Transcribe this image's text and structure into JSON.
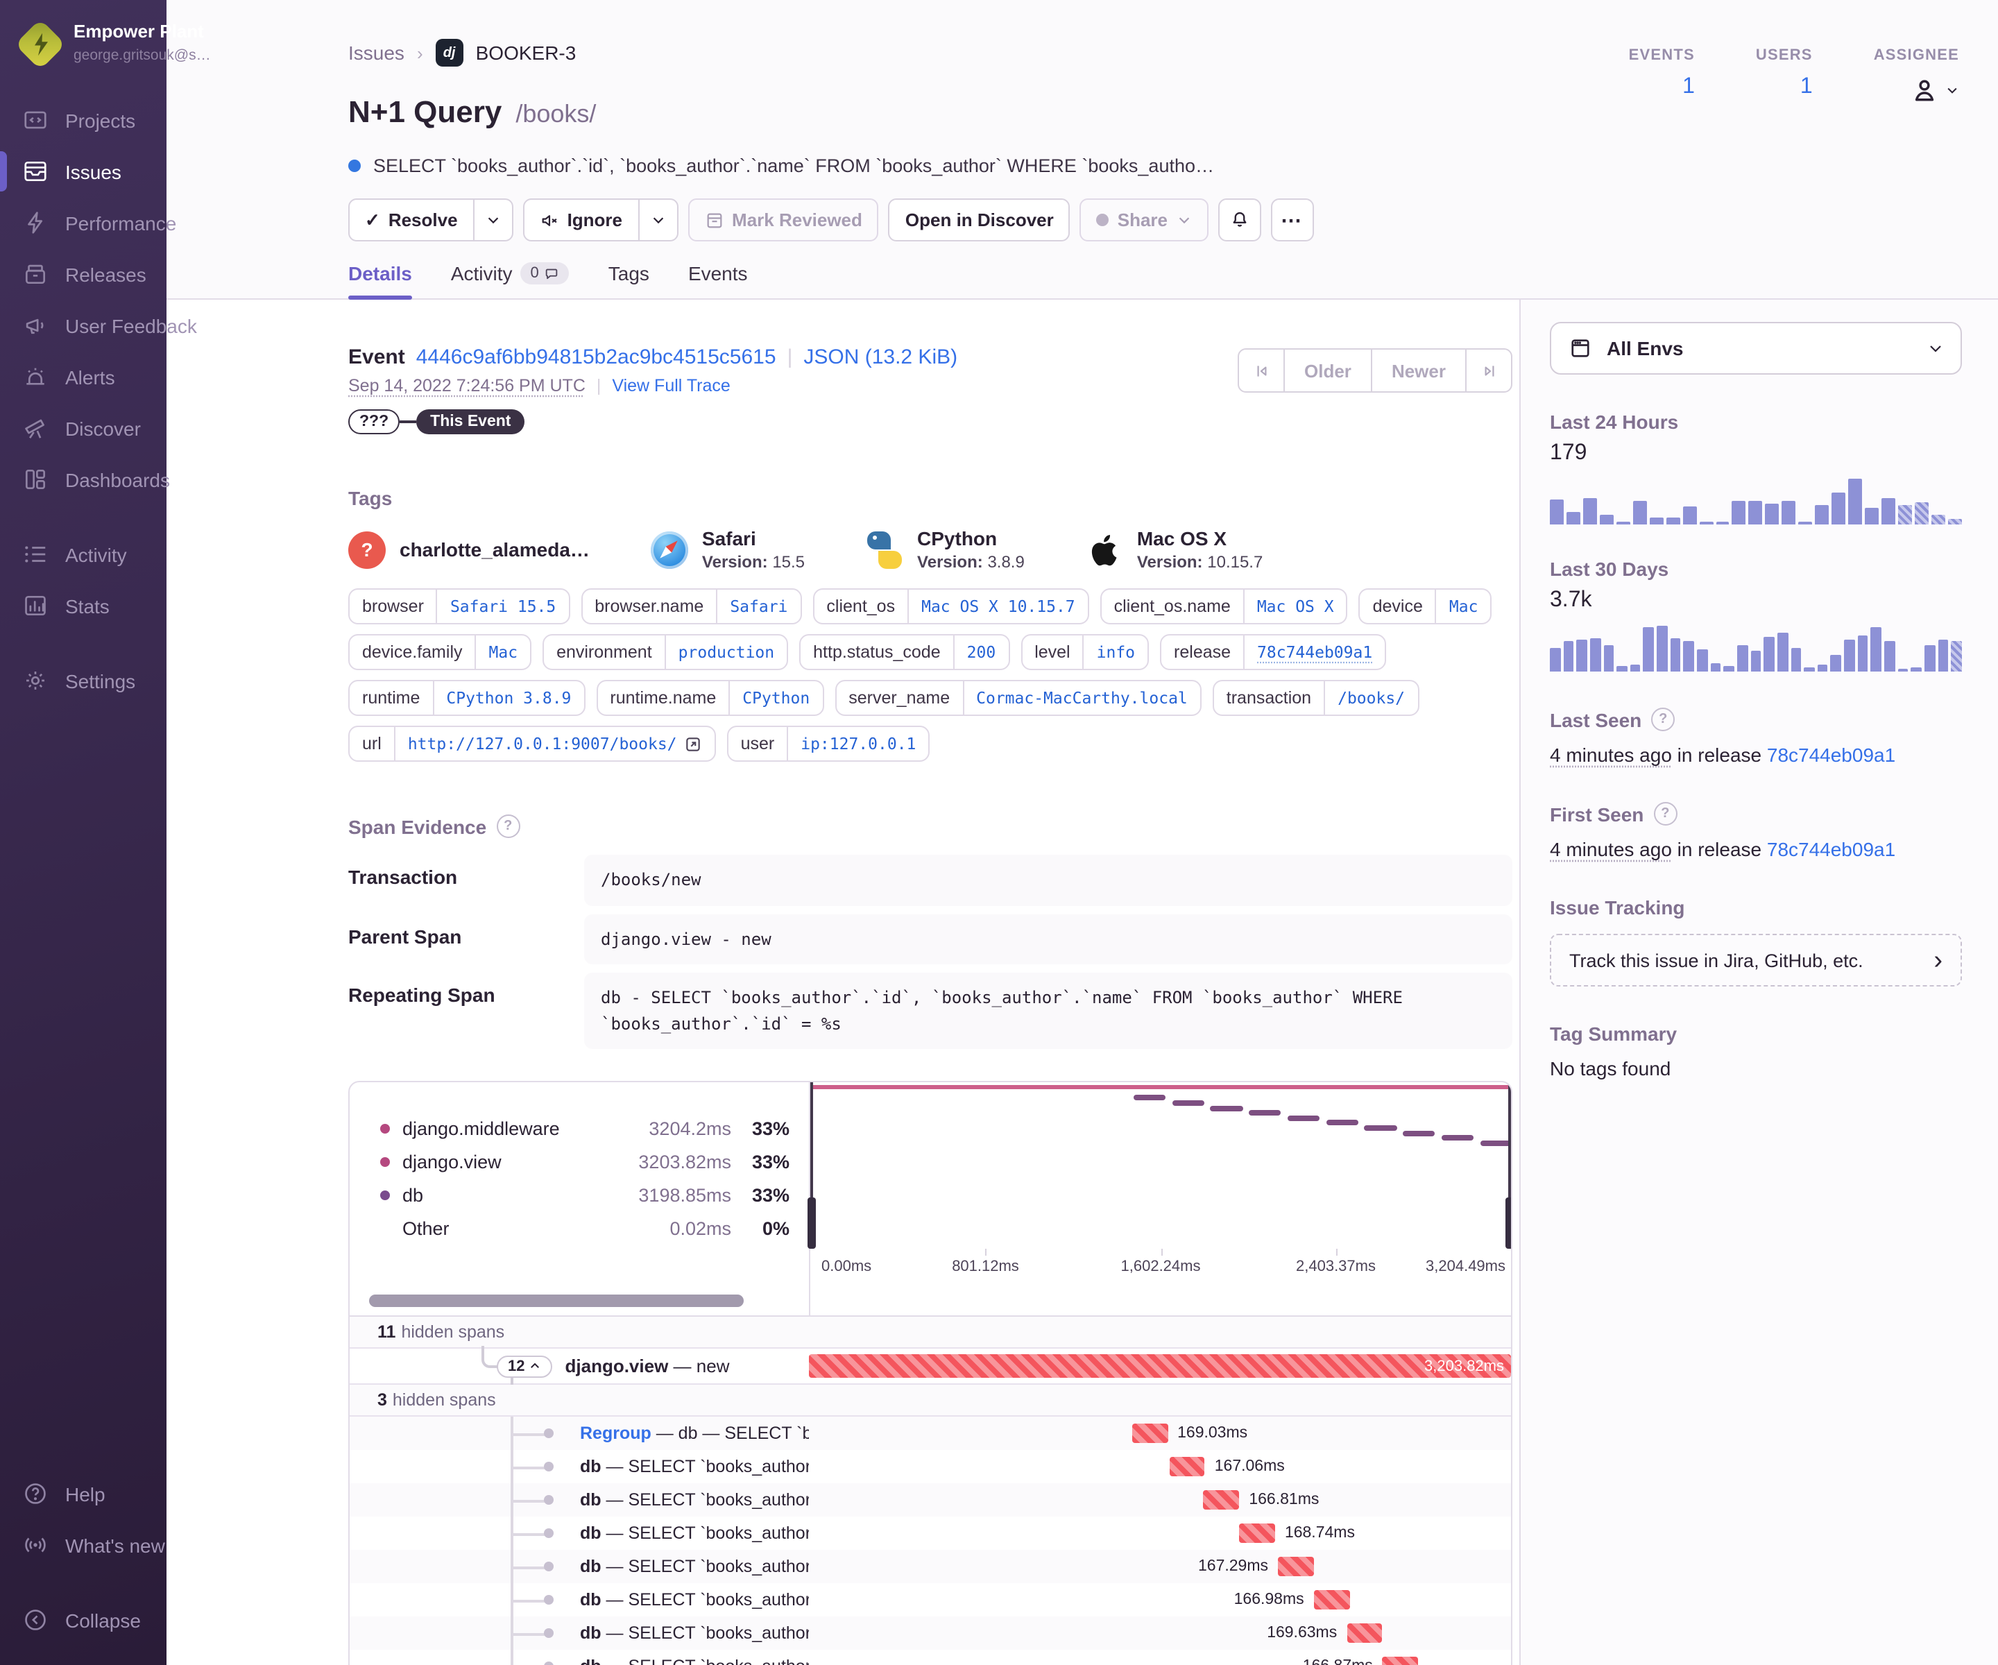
{
  "org": {
    "name": "Empower Plant",
    "email": "george.gritsouk@s…"
  },
  "sidebar": {
    "items": [
      {
        "id": "projects",
        "label": "Projects"
      },
      {
        "id": "issues",
        "label": "Issues",
        "active": true
      },
      {
        "id": "performance",
        "label": "Performance"
      },
      {
        "id": "releases",
        "label": "Releases"
      },
      {
        "id": "user-feedback",
        "label": "User Feedback"
      },
      {
        "id": "alerts",
        "label": "Alerts"
      },
      {
        "id": "discover",
        "label": "Discover"
      },
      {
        "id": "dashboards",
        "label": "Dashboards",
        "gap_after": true
      },
      {
        "id": "activity",
        "label": "Activity"
      },
      {
        "id": "stats",
        "label": "Stats",
        "gap_after": true
      },
      {
        "id": "settings",
        "label": "Settings"
      }
    ],
    "footer": [
      {
        "id": "help",
        "label": "Help"
      },
      {
        "id": "whats-new",
        "label": "What's new",
        "gap_after": true
      },
      {
        "id": "collapse",
        "label": "Collapse"
      }
    ]
  },
  "breadcrumb": {
    "root": "Issues",
    "project_icon": "dj",
    "project": "BOOKER-3"
  },
  "header": {
    "title": "N+1 Query",
    "transaction": "/books/",
    "culprit": "SELECT `books_author`.`id`, `books_author`.`name` FROM `books_author` WHERE `books_autho…",
    "stats": {
      "events_label": "EVENTS",
      "events_value": "1",
      "users_label": "USERS",
      "users_value": "1",
      "assignee_label": "ASSIGNEE"
    },
    "actions": {
      "resolve": "Resolve",
      "ignore": "Ignore",
      "mark_reviewed": "Mark Reviewed",
      "open_in_discover": "Open in Discover",
      "share": "Share"
    },
    "tabs": [
      {
        "label": "Details",
        "active": true
      },
      {
        "label": "Activity",
        "badge": "0"
      },
      {
        "label": "Tags"
      },
      {
        "label": "Events"
      }
    ]
  },
  "event": {
    "label": "Event",
    "id": "4446c9af6bb94815b2ac9bc4515c5615",
    "json_link": "JSON (13.2 KiB)",
    "date": "Sep 14, 2022 7:24:56 PM UTC",
    "view_full_trace": "View Full Trace",
    "unknown_pill": "???",
    "this_event_pill": "This Event",
    "pagination": {
      "older": "Older",
      "newer": "Newer"
    }
  },
  "tags": {
    "heading": "Tags",
    "avatars": [
      {
        "name": "charlotte_alameda…",
        "icon": "question"
      },
      {
        "name": "Safari",
        "version_label": "Version:",
        "version": "15.5",
        "icon": "safari"
      },
      {
        "name": "CPython",
        "version_label": "Version:",
        "version": "3.8.9",
        "icon": "python"
      },
      {
        "name": "Mac OS X",
        "version_label": "Version:",
        "version": "10.15.7",
        "icon": "apple"
      }
    ],
    "pills": [
      {
        "key": "browser",
        "value": "Safari 15.5"
      },
      {
        "key": "browser.name",
        "value": "Safari"
      },
      {
        "key": "client_os",
        "value": "Mac OS X 10.15.7"
      },
      {
        "key": "client_os.name",
        "value": "Mac OS X"
      },
      {
        "key": "device",
        "value": "Mac"
      },
      {
        "key": "device.family",
        "value": "Mac"
      },
      {
        "key": "environment",
        "value": "production"
      },
      {
        "key": "http.status_code",
        "value": "200"
      },
      {
        "key": "level",
        "value": "info"
      },
      {
        "key": "release",
        "value": "78c744eb09a1",
        "underline": true
      },
      {
        "key": "runtime",
        "value": "CPython 3.8.9"
      },
      {
        "key": "runtime.name",
        "value": "CPython"
      },
      {
        "key": "server_name",
        "value": "Cormac-MacCarthy.local"
      },
      {
        "key": "transaction",
        "value": "/books/"
      },
      {
        "key": "url",
        "value": "http://127.0.0.1:9007/books/",
        "external": true
      },
      {
        "key": "user",
        "value": "ip:127.0.0.1"
      }
    ]
  },
  "span_evidence": {
    "heading": "Span Evidence",
    "rows": [
      {
        "label": "Transaction",
        "value": "/books/new"
      },
      {
        "label": "Parent Span",
        "value": "django.view - new"
      },
      {
        "label": "Repeating Span",
        "value": "db - SELECT `books_author`.`id`, `books_author`.`name` FROM `books_author` WHERE `books_author`.`id` = %s"
      }
    ]
  },
  "waterfall": {
    "hidden_before": {
      "count": "11",
      "label": "hidden spans"
    },
    "group_row": {
      "badge": "12",
      "op": "django.view",
      "sep": " — ",
      "desc": "new",
      "duration": "3,203.82ms"
    },
    "hidden_inside": {
      "count": "3",
      "label": "hidden spans"
    }
  },
  "aside": {
    "env_select": "All Envs",
    "last_seen": {
      "heading": "Last Seen",
      "ago": "4 minutes ago",
      "mid": " in release ",
      "release": "78c744eb09a1"
    },
    "first_seen": {
      "heading": "First Seen",
      "ago": "4 minutes ago",
      "mid": " in release ",
      "release": "78c744eb09a1"
    },
    "issue_tracking": {
      "heading": "Issue Tracking",
      "button": "Track this issue in Jira, GitHub, etc."
    },
    "tag_summary": {
      "heading": "Tag Summary",
      "empty": "No tags found"
    }
  },
  "chart_data": [
    {
      "name": "span-operations-breakdown",
      "type": "table",
      "legend": [
        {
          "label": "django.middleware",
          "time": "3204.2ms",
          "pct": "33%",
          "color": "#b5487f"
        },
        {
          "label": "django.view",
          "time": "3203.82ms",
          "pct": "33%",
          "color": "#b5487f"
        },
        {
          "label": "db",
          "time": "3198.85ms",
          "pct": "33%",
          "color": "#7a4b8d"
        },
        {
          "label": "Other",
          "time": "0.02ms",
          "pct": "0%",
          "color": null
        }
      ]
    },
    {
      "name": "span-minimap",
      "type": "area",
      "x_ticks": [
        "0.00ms",
        "801.12ms",
        "1,602.24ms",
        "2,403.37ms",
        "3,204.49ms"
      ],
      "xlim_ms": [
        0,
        3204.49
      ],
      "top_span_color": "#cd5e8a",
      "db_span_color": "#7d4f81",
      "db_dash_count": 10,
      "db_dash_start_frac": 0.46
    },
    {
      "name": "span-tree",
      "type": "table",
      "rows": [
        {
          "op": "Regroup",
          "op_style": "link",
          "sep": " — db — ",
          "desc": "SELECT `boo",
          "duration": "169.03ms",
          "start_frac": 0.46,
          "label_side": "right"
        },
        {
          "op": "db",
          "sep": " — ",
          "desc": "SELECT `books_author`",
          "duration": "167.06ms",
          "start_frac": 0.513,
          "label_side": "right"
        },
        {
          "op": "db",
          "sep": " — ",
          "desc": "SELECT `books_author`",
          "duration": "166.81ms",
          "start_frac": 0.562,
          "label_side": "right"
        },
        {
          "op": "db",
          "sep": " — ",
          "desc": "SELECT `books_author`",
          "duration": "168.74ms",
          "start_frac": 0.613,
          "label_side": "right"
        },
        {
          "op": "db",
          "sep": " — ",
          "desc": "SELECT `books_author`",
          "duration": "167.29ms",
          "start_frac": 0.668,
          "label_side": "left"
        },
        {
          "op": "db",
          "sep": " — ",
          "desc": "SELECT `books_author`",
          "duration": "166.98ms",
          "start_frac": 0.719,
          "label_side": "left"
        },
        {
          "op": "db",
          "sep": " — ",
          "desc": "SELECT `books_author`",
          "duration": "169.63ms",
          "start_frac": 0.766,
          "label_side": "left"
        },
        {
          "op": "db",
          "sep": " — ",
          "desc": "SELECT `books_author`",
          "duration": "166.87ms",
          "start_frac": 0.817,
          "label_side": "left"
        }
      ]
    },
    {
      "name": "events-last-24h",
      "type": "bar",
      "title": "Last 24 Hours",
      "total": "179",
      "bar_color": "#8d91d6",
      "hatched_tail": 4,
      "values": [
        52,
        26,
        54,
        19,
        6,
        50,
        16,
        14,
        37,
        4,
        4,
        49,
        49,
        44,
        49,
        4,
        40,
        66,
        96,
        34,
        54,
        40,
        47,
        21,
        13
      ]
    },
    {
      "name": "events-last-30d",
      "type": "bar",
      "title": "Last 30 Days",
      "total": "3.7k",
      "bar_color": "#8d91d6",
      "hatched_tail": 1,
      "values": [
        45,
        58,
        62,
        65,
        52,
        10,
        13,
        85,
        88,
        65,
        60,
        42,
        15,
        11,
        52,
        40,
        68,
        75,
        45,
        8,
        14,
        33,
        62,
        70,
        85,
        60,
        6,
        9,
        52,
        62,
        60
      ]
    }
  ]
}
